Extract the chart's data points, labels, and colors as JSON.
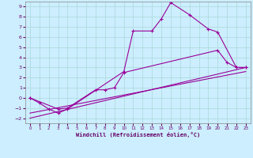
{
  "xlabel": "Windchill (Refroidissement éolien,°C)",
  "background_color": "#cceeff",
  "grid_color": "#aad8d8",
  "line_color": "#990099",
  "xlim": [
    -0.5,
    23.5
  ],
  "ylim": [
    -2.5,
    9.5
  ],
  "xticks": [
    0,
    1,
    2,
    3,
    4,
    5,
    6,
    7,
    8,
    9,
    10,
    11,
    12,
    13,
    14,
    15,
    16,
    17,
    18,
    19,
    20,
    21,
    22,
    23
  ],
  "yticks": [
    -2,
    -1,
    0,
    1,
    2,
    3,
    4,
    5,
    6,
    7,
    8,
    9
  ],
  "line1_x": [
    0,
    1,
    2,
    3,
    4,
    10,
    11,
    13,
    14,
    15,
    17,
    19,
    20,
    22,
    23
  ],
  "line1_y": [
    0.0,
    -0.5,
    -1.1,
    -1.5,
    -1.1,
    2.6,
    6.6,
    6.6,
    7.8,
    9.4,
    8.2,
    6.8,
    6.5,
    3.0,
    3.0
  ],
  "line2_x": [
    0,
    3,
    4,
    7,
    8,
    9,
    10,
    20,
    21,
    22,
    23
  ],
  "line2_y": [
    0.0,
    -1.1,
    -1.0,
    0.8,
    0.8,
    1.0,
    2.5,
    4.7,
    3.5,
    3.0,
    3.0
  ],
  "line3_x": [
    0,
    23
  ],
  "line3_y": [
    -2.0,
    3.0
  ],
  "line4_x": [
    0,
    23
  ],
  "line4_y": [
    -1.5,
    2.6
  ]
}
